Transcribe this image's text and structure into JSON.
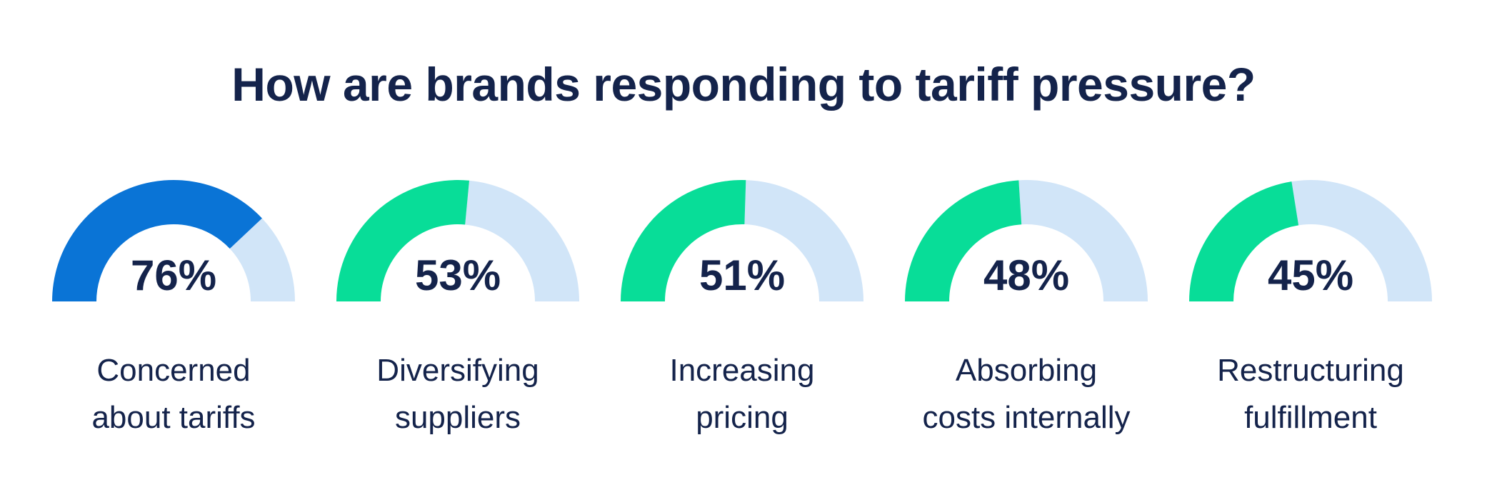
{
  "title": "How are brands responding to tariff pressure?",
  "colors": {
    "highlight": "#0a74d6",
    "fill": "#08dd98",
    "track": "#d1e5f8",
    "text": "#14234b"
  },
  "chart_data": {
    "type": "gauge",
    "title": "How are brands responding to tariff pressure?",
    "unit": "%",
    "range": [
      0,
      100
    ],
    "items": [
      {
        "label_line1": "Concerned",
        "label_line2": "about tariffs",
        "value": 76,
        "display": "76%",
        "highlight": true
      },
      {
        "label_line1": "Diversifying",
        "label_line2": "suppliers",
        "value": 53,
        "display": "53%",
        "highlight": false
      },
      {
        "label_line1": "Increasing",
        "label_line2": "pricing",
        "value": 51,
        "display": "51%",
        "highlight": false
      },
      {
        "label_line1": "Absorbing",
        "label_line2": "costs internally",
        "value": 48,
        "display": "48%",
        "highlight": false
      },
      {
        "label_line1": "Restructuring",
        "label_line2": "fulfillment",
        "value": 45,
        "display": "45%",
        "highlight": false
      }
    ]
  }
}
